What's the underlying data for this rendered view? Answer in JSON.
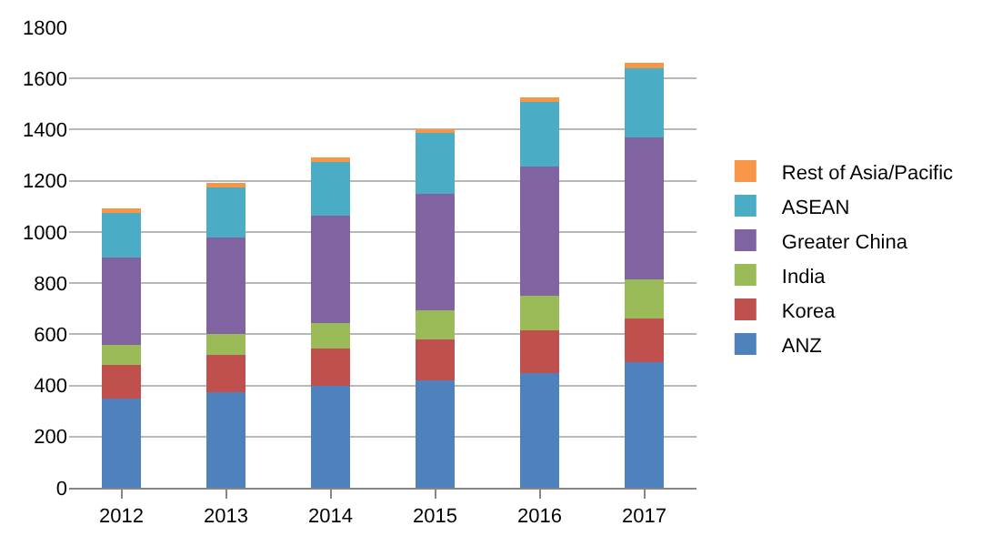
{
  "chart_data": {
    "type": "bar",
    "stacked": true,
    "categories": [
      "2012",
      "2013",
      "2014",
      "2015",
      "2016",
      "2017"
    ],
    "series": [
      {
        "name": "ANZ",
        "color": "#4f81bd",
        "values": [
          350,
          375,
          400,
          420,
          450,
          490
        ]
      },
      {
        "name": "Korea",
        "color": "#c0504d",
        "values": [
          130,
          145,
          145,
          160,
          165,
          170
        ]
      },
      {
        "name": "India",
        "color": "#9bbb59",
        "values": [
          80,
          80,
          100,
          115,
          135,
          155
        ]
      },
      {
        "name": "Greater China",
        "color": "#8064a2",
        "values": [
          340,
          380,
          420,
          455,
          505,
          555
        ]
      },
      {
        "name": "ASEAN",
        "color": "#4bacc6",
        "values": [
          180,
          200,
          215,
          242,
          255,
          270
        ]
      },
      {
        "name": "Rest of Asia/Pacific",
        "color": "#f79646",
        "values": [
          12,
          12,
          12,
          10,
          15,
          20
        ]
      }
    ],
    "ylim": [
      0,
      1800
    ],
    "yticks": [
      0,
      200,
      400,
      600,
      800,
      1000,
      1200,
      1400,
      1600,
      1800
    ],
    "grid": "y",
    "legend": "right"
  }
}
